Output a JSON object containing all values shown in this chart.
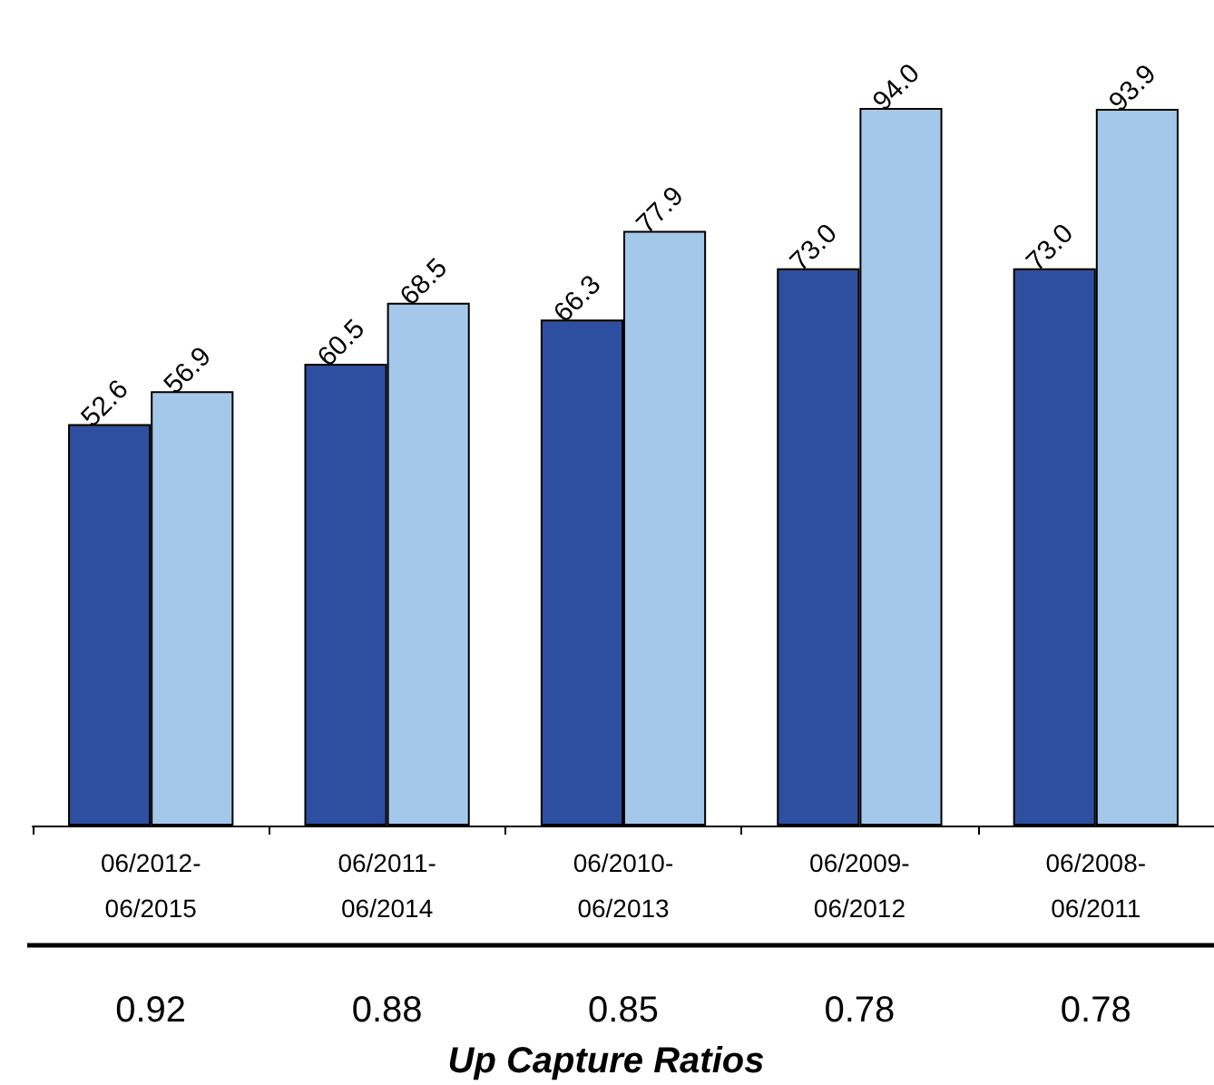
{
  "chart_data": {
    "type": "bar",
    "categories": [
      "06/2012-\n06/2015",
      "06/2011-\n06/2014",
      "06/2010-\n06/2013",
      "06/2009-\n06/2012",
      "06/2008-\n06/2011"
    ],
    "series": [
      {
        "color": "#2e4fa0",
        "values": [
          52.6,
          60.5,
          66.3,
          73.0,
          73.0
        ],
        "value_labels": [
          "52.6",
          "60.5",
          "66.3",
          "73.0",
          "73.0"
        ]
      },
      {
        "color": "#a3c8ea",
        "values": [
          56.9,
          68.5,
          77.9,
          94.0,
          93.9
        ],
        "value_labels": [
          "56.9",
          "68.5",
          "77.9",
          "94.0",
          "93.9"
        ]
      }
    ],
    "annotations": [
      "0.92",
      "0.88",
      "0.85",
      "0.78",
      "0.78",
      "Up Capture Ratios"
    ]
  }
}
